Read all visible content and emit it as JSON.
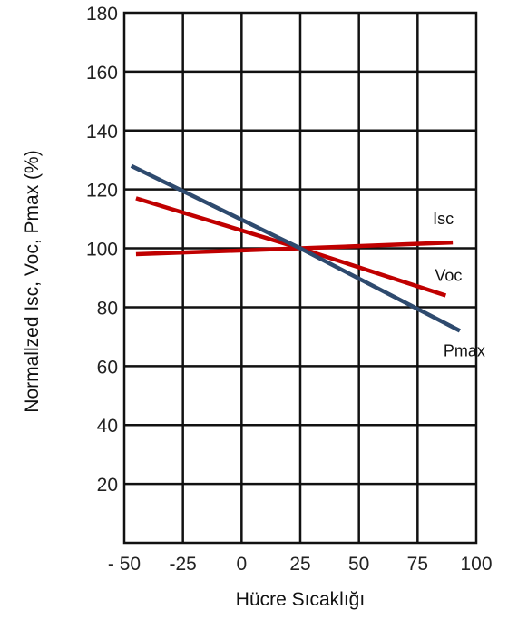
{
  "chart_data": {
    "type": "line",
    "xlabel": "Hücre Sıcaklığı",
    "ylabel": "Normallzed Isc, Voc, Pmax (%)",
    "xlim": [
      -50,
      100
    ],
    "ylim": [
      0,
      180
    ],
    "x_ticks": [
      -50,
      -25,
      0,
      25,
      50,
      75,
      100
    ],
    "x_tick_labels": [
      "- 50",
      "-25",
      "0",
      "25",
      "50",
      "75",
      "100"
    ],
    "y_ticks": [
      20,
      40,
      60,
      80,
      100,
      120,
      140,
      160,
      180
    ],
    "y_tick_labels": [
      "20",
      "40",
      "60",
      "80",
      "100",
      "120",
      "140",
      "160",
      "180"
    ],
    "grid": true,
    "legend": "inline labels at line ends",
    "series": [
      {
        "name": "Isc",
        "color": "#c00000",
        "x": [
          -45,
          25,
          90
        ],
        "y": [
          98,
          100,
          102
        ]
      },
      {
        "name": "Voc",
        "color": "#c00000",
        "x": [
          -45,
          25,
          87
        ],
        "y": [
          117,
          100,
          84
        ]
      },
      {
        "name": "Pmax",
        "color": "#2e4a6e",
        "x": [
          -47,
          25,
          93
        ],
        "y": [
          128,
          100,
          72
        ]
      }
    ]
  }
}
